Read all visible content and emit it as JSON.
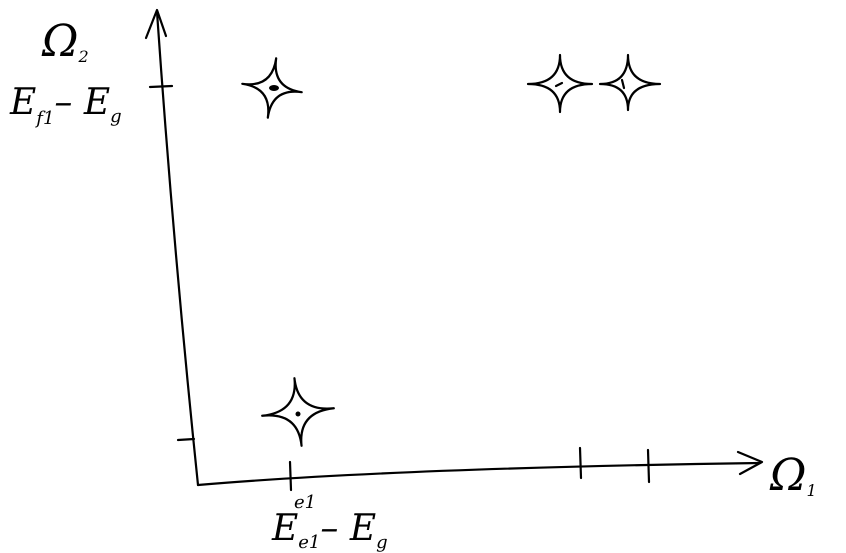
{
  "y_axis": {
    "symbol": "Ω",
    "index": "2"
  },
  "x_axis": {
    "symbol": "Ω",
    "index": "1"
  },
  "y_tick_label": {
    "main": "E",
    "sub": "f1",
    "rest": "– E",
    "rest_sub": "g"
  },
  "x_tick_label": {
    "above": "e1",
    "main": "E",
    "sub": "e1",
    "rest": "– E",
    "rest_sub": "g"
  }
}
